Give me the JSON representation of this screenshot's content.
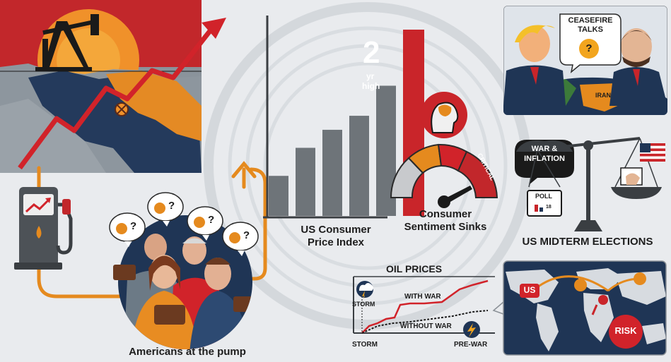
{
  "colors": {
    "red": "#c9252a",
    "orange": "#e58a1e",
    "navy": "#1f3555",
    "gray": "#6e7479",
    "background": "#e9ebee"
  },
  "cpi_chart": {
    "values": [
      2,
      3.4,
      4.3,
      5,
      6.5,
      9.3
    ],
    "highlight_index": 5,
    "highlight_label_big": "2",
    "highlight_label_small": "yr",
    "highlight_label_small2": "high",
    "caption_line1": "US Consumer",
    "caption_line2": "Price Index"
  },
  "sentiment": {
    "gauge_label": "CRITICAL",
    "caption_line1": "Consumer",
    "caption_line2": "Sentiment Sinks"
  },
  "ceasefire": {
    "line1": "CEASEFIRE",
    "line2": "TALKS",
    "mark": "?",
    "country_right": "IRAN"
  },
  "midterms": {
    "bubble_line1": "WAR &",
    "bubble_line2": "INFLATION",
    "poll_label": "POLL",
    "poll_number": "18",
    "caption": "US MIDTERM ELECTIONS"
  },
  "oil_prices": {
    "title": "OIL PRICES",
    "with_war": "WITH WAR",
    "without_war": "WITHOUT WAR",
    "storm_top": "STORM",
    "storm_bottom": "STORM",
    "pre_war": "PRE-WAR"
  },
  "map": {
    "us_label": "US",
    "risk_label": "RISK"
  },
  "pump": {
    "caption": "Americans at the pump",
    "question_marks": [
      "?",
      "?",
      "?",
      "?"
    ]
  }
}
